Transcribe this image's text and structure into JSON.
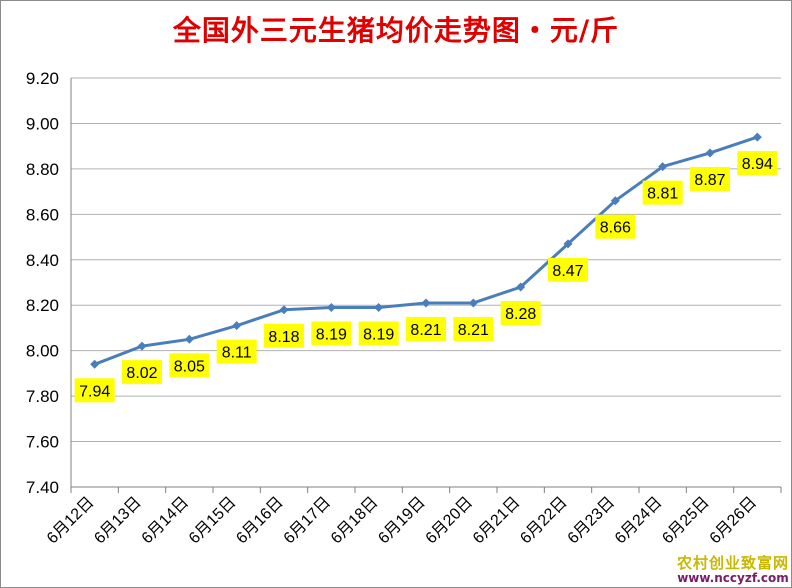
{
  "chart_data": {
    "type": "line",
    "title": "全国外三元生猪均价走势图・元/斤",
    "categories": [
      "6月12日",
      "6月13日",
      "6月14日",
      "6月15日",
      "6月16日",
      "6月17日",
      "6月18日",
      "6月19日",
      "6月20日",
      "6月21日",
      "6月22日",
      "6月23日",
      "6月24日",
      "6月25日",
      "6月26日"
    ],
    "values": [
      7.94,
      8.02,
      8.05,
      8.11,
      8.18,
      8.19,
      8.19,
      8.21,
      8.21,
      8.28,
      8.47,
      8.66,
      8.81,
      8.87,
      8.94
    ],
    "data_labels": [
      "7.94",
      "8.02",
      "8.05",
      "8.11",
      "8.18",
      "8.19",
      "8.19",
      "8.21",
      "8.21",
      "8.28",
      "8.47",
      "8.66",
      "8.81",
      "8.87",
      "8.94"
    ],
    "y_ticks": [
      "7.40",
      "7.60",
      "7.80",
      "8.00",
      "8.20",
      "8.40",
      "8.60",
      "8.80",
      "9.00",
      "9.20"
    ],
    "ylim": [
      7.4,
      9.2
    ],
    "xlabel": "",
    "ylabel": "",
    "grid": true,
    "line_color": "#4a7ebb",
    "grid_color": "#b0b0b0",
    "label_bg_color": "#ffff00",
    "title_color": "#e00000"
  },
  "watermark": {
    "name": "农村创业致富网",
    "url": "www.nccyzf.com"
  }
}
